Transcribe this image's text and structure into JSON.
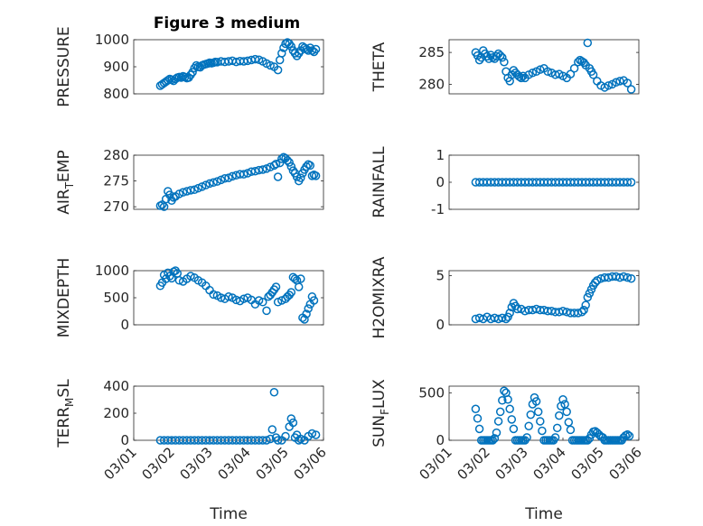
{
  "figure": {
    "title": "Figure 3 medium"
  },
  "colors": {
    "marker": "#0072BD",
    "axis": "#262626"
  },
  "chart_data": [
    {
      "type": "scatter",
      "ylabel_main": "PRESSURE",
      "ylabel_sub": "",
      "ylabel_tail": "",
      "xlabel": "",
      "xlim": [
        0,
        5
      ],
      "ylim": [
        800,
        1000
      ],
      "yticks": [
        800,
        900,
        1000
      ],
      "ytick_labels": [
        "800",
        "900",
        "1000"
      ],
      "xticks": [],
      "xtick_labels": [],
      "x": [
        0.7,
        0.75,
        0.8,
        0.85,
        0.9,
        0.95,
        1.0,
        1.05,
        1.1,
        1.15,
        1.2,
        1.25,
        1.3,
        1.35,
        1.4,
        1.45,
        1.5,
        1.55,
        1.6,
        1.65,
        1.7,
        1.75,
        1.8,
        1.85,
        1.9,
        1.95,
        2.0,
        2.05,
        2.1,
        2.15,
        2.2,
        2.3,
        2.4,
        2.5,
        2.6,
        2.7,
        2.8,
        2.9,
        3.0,
        3.1,
        3.2,
        3.3,
        3.4,
        3.5,
        3.6,
        3.7,
        3.8,
        3.85,
        3.9,
        3.95,
        4.0,
        4.05,
        4.1,
        4.15,
        4.2,
        4.25,
        4.3,
        4.35,
        4.4,
        4.45,
        4.5,
        4.55,
        4.6,
        4.65,
        4.7,
        4.75,
        4.8
      ],
      "y": [
        830,
        835,
        840,
        845,
        850,
        855,
        852,
        848,
        855,
        860,
        862,
        860,
        865,
        862,
        858,
        860,
        870,
        880,
        895,
        905,
        900,
        898,
        905,
        908,
        910,
        912,
        915,
        913,
        915,
        918,
        917,
        920,
        918,
        920,
        922,
        918,
        921,
        920,
        922,
        925,
        928,
        926,
        920,
        912,
        905,
        900,
        888,
        925,
        950,
        970,
        985,
        990,
        985,
        975,
        960,
        950,
        940,
        950,
        960,
        975,
        970,
        965,
        960,
        970,
        960,
        955,
        965
      ]
    },
    {
      "type": "scatter",
      "ylabel_main": "THETA",
      "ylabel_sub": "",
      "ylabel_tail": "",
      "xlabel": "",
      "xlim": [
        0,
        5
      ],
      "ylim": [
        278.5,
        287
      ],
      "yticks": [
        280,
        285
      ],
      "ytick_labels": [
        "280",
        "285"
      ],
      "xticks": [],
      "xtick_labels": [],
      "x": [
        0.7,
        0.75,
        0.8,
        0.85,
        0.9,
        0.95,
        1.0,
        1.05,
        1.1,
        1.15,
        1.2,
        1.25,
        1.3,
        1.35,
        1.4,
        1.45,
        1.5,
        1.55,
        1.6,
        1.65,
        1.7,
        1.75,
        1.8,
        1.85,
        1.9,
        1.95,
        2.0,
        2.1,
        2.2,
        2.3,
        2.4,
        2.5,
        2.6,
        2.7,
        2.8,
        2.9,
        3.0,
        3.1,
        3.2,
        3.3,
        3.4,
        3.45,
        3.5,
        3.55,
        3.6,
        3.65,
        3.7,
        3.75,
        3.8,
        3.9,
        4.0,
        4.1,
        4.2,
        4.3,
        4.4,
        4.5,
        4.6,
        4.7,
        4.8
      ],
      "y": [
        285.0,
        284.5,
        283.8,
        284.2,
        285.3,
        284.8,
        284.4,
        284.0,
        284.6,
        284.2,
        284.0,
        284.4,
        284.8,
        284.5,
        284.2,
        283.5,
        282.0,
        281.0,
        280.5,
        281.5,
        282.2,
        281.8,
        281.5,
        281.2,
        281.0,
        281.3,
        281.0,
        281.5,
        281.8,
        282.0,
        282.3,
        282.5,
        282.0,
        281.8,
        281.5,
        281.6,
        281.3,
        281.0,
        281.6,
        282.5,
        283.5,
        283.8,
        283.6,
        283.4,
        283.0,
        286.5,
        282.5,
        282.0,
        281.5,
        280.5,
        279.8,
        279.5,
        279.8,
        280.0,
        280.3,
        280.5,
        280.6,
        280.2,
        279.2
      ]
    },
    {
      "type": "scatter",
      "ylabel_main": "AIR",
      "ylabel_sub": "T",
      "ylabel_tail": "EMP",
      "xlabel": "",
      "xlim": [
        0,
        5
      ],
      "ylim": [
        269.5,
        280
      ],
      "yticks": [
        270,
        275,
        280
      ],
      "ytick_labels": [
        "270",
        "275",
        "280"
      ],
      "xticks": [],
      "xtick_labels": [],
      "x": [
        0.7,
        0.75,
        0.8,
        0.85,
        0.9,
        0.95,
        1.0,
        1.05,
        1.1,
        1.2,
        1.3,
        1.4,
        1.5,
        1.6,
        1.7,
        1.8,
        1.9,
        2.0,
        2.1,
        2.2,
        2.3,
        2.4,
        2.5,
        2.6,
        2.7,
        2.8,
        2.9,
        3.0,
        3.1,
        3.2,
        3.3,
        3.4,
        3.5,
        3.6,
        3.7,
        3.75,
        3.8,
        3.85,
        3.9,
        3.95,
        4.0,
        4.05,
        4.1,
        4.15,
        4.2,
        4.25,
        4.3,
        4.35,
        4.4,
        4.45,
        4.5,
        4.55,
        4.6,
        4.65,
        4.7,
        4.75,
        4.8
      ],
      "y": [
        270.2,
        270.4,
        270.0,
        271.5,
        273.0,
        272.3,
        271.2,
        271.8,
        272.0,
        272.5,
        272.8,
        273.0,
        273.2,
        273.3,
        273.6,
        273.9,
        274.2,
        274.5,
        274.7,
        274.9,
        275.2,
        275.5,
        275.6,
        275.9,
        276.1,
        276.3,
        276.3,
        276.5,
        276.8,
        276.9,
        277.1,
        277.2,
        277.4,
        277.7,
        278.0,
        278.3,
        275.8,
        278.5,
        279.3,
        279.6,
        279.4,
        279.0,
        278.6,
        277.8,
        277.0,
        276.5,
        275.8,
        275.0,
        275.6,
        276.5,
        277.2,
        277.8,
        278.2,
        278.0,
        276.0,
        276.2,
        276.0
      ]
    },
    {
      "type": "scatter",
      "ylabel_main": "RAINFALL",
      "ylabel_sub": "",
      "ylabel_tail": "",
      "xlabel": "",
      "xlim": [
        0,
        5
      ],
      "ylim": [
        -1,
        1
      ],
      "yticks": [
        -1,
        0,
        1
      ],
      "ytick_labels": [
        "-1",
        "0",
        "1"
      ],
      "xticks": [],
      "xtick_labels": [],
      "x": [
        0.7,
        0.8,
        0.9,
        1.0,
        1.1,
        1.2,
        1.3,
        1.4,
        1.5,
        1.6,
        1.7,
        1.8,
        1.9,
        2.0,
        2.1,
        2.2,
        2.3,
        2.4,
        2.5,
        2.6,
        2.7,
        2.8,
        2.9,
        3.0,
        3.1,
        3.2,
        3.3,
        3.4,
        3.5,
        3.6,
        3.7,
        3.8,
        3.9,
        4.0,
        4.1,
        4.2,
        4.3,
        4.4,
        4.5,
        4.6,
        4.7,
        4.8
      ],
      "y": [
        0,
        0,
        0,
        0,
        0,
        0,
        0,
        0,
        0,
        0,
        0,
        0,
        0,
        0,
        0,
        0,
        0,
        0,
        0,
        0,
        0,
        0,
        0,
        0,
        0,
        0,
        0,
        0,
        0,
        0,
        0,
        0,
        0,
        0,
        0,
        0,
        0,
        0,
        0,
        0,
        0,
        0
      ]
    },
    {
      "type": "scatter",
      "ylabel_main": "MIXDEPTH",
      "ylabel_sub": "",
      "ylabel_tail": "",
      "xlabel": "",
      "xlim": [
        0,
        5
      ],
      "ylim": [
        0,
        1000
      ],
      "yticks": [
        0,
        500,
        1000
      ],
      "ytick_labels": [
        "0",
        "500",
        "1000"
      ],
      "xticks": [],
      "xtick_labels": [],
      "x": [
        0.7,
        0.75,
        0.8,
        0.85,
        0.9,
        0.95,
        1.0,
        1.05,
        1.1,
        1.15,
        1.2,
        1.3,
        1.4,
        1.5,
        1.6,
        1.7,
        1.8,
        1.9,
        2.0,
        2.1,
        2.2,
        2.3,
        2.4,
        2.5,
        2.6,
        2.7,
        2.8,
        2.9,
        3.0,
        3.1,
        3.2,
        3.3,
        3.4,
        3.5,
        3.55,
        3.6,
        3.65,
        3.7,
        3.75,
        3.8,
        3.9,
        4.0,
        4.05,
        4.1,
        4.15,
        4.2,
        4.25,
        4.3,
        4.35,
        4.4,
        4.45,
        4.5,
        4.55,
        4.6,
        4.65,
        4.7,
        4.75
      ],
      "y": [
        720,
        780,
        920,
        850,
        960,
        900,
        860,
        980,
        1000,
        950,
        820,
        800,
        850,
        900,
        870,
        820,
        780,
        720,
        640,
        560,
        540,
        500,
        480,
        520,
        500,
        460,
        440,
        480,
        500,
        460,
        380,
        450,
        420,
        260,
        520,
        550,
        600,
        650,
        700,
        420,
        450,
        480,
        520,
        550,
        600,
        880,
        850,
        820,
        700,
        850,
        130,
        100,
        200,
        300,
        380,
        520,
        450
      ]
    },
    {
      "type": "scatter",
      "ylabel_main": "H2OMIXRA",
      "ylabel_sub": "",
      "ylabel_tail": "",
      "xlabel": "",
      "xlim": [
        0,
        5
      ],
      "ylim": [
        0,
        5.5
      ],
      "yticks": [
        0,
        5
      ],
      "ytick_labels": [
        "0",
        "5"
      ],
      "xticks": [],
      "xtick_labels": [],
      "x": [
        0.7,
        0.8,
        0.9,
        1.0,
        1.1,
        1.2,
        1.3,
        1.4,
        1.5,
        1.55,
        1.6,
        1.65,
        1.7,
        1.75,
        1.8,
        1.9,
        2.0,
        2.1,
        2.2,
        2.3,
        2.4,
        2.5,
        2.6,
        2.7,
        2.8,
        2.9,
        3.0,
        3.1,
        3.2,
        3.3,
        3.4,
        3.5,
        3.55,
        3.6,
        3.65,
        3.7,
        3.75,
        3.8,
        3.85,
        3.9,
        4.0,
        4.1,
        4.2,
        4.3,
        4.4,
        4.5,
        4.6,
        4.7,
        4.8
      ],
      "y": [
        0.6,
        0.7,
        0.6,
        0.8,
        0.6,
        0.7,
        0.6,
        0.7,
        0.6,
        0.8,
        1.2,
        1.8,
        2.2,
        1.9,
        1.6,
        1.6,
        1.4,
        1.5,
        1.5,
        1.6,
        1.5,
        1.5,
        1.4,
        1.4,
        1.3,
        1.3,
        1.4,
        1.3,
        1.2,
        1.2,
        1.2,
        1.3,
        1.5,
        2.0,
        2.8,
        3.2,
        3.6,
        4.0,
        4.3,
        4.5,
        4.7,
        4.8,
        4.8,
        4.9,
        4.9,
        4.8,
        4.9,
        4.8,
        4.7
      ]
    },
    {
      "type": "scatter",
      "ylabel_main": "TERR",
      "ylabel_sub": "M",
      "ylabel_tail": "SL",
      "xlabel": "Time",
      "xlim": [
        0,
        5
      ],
      "ylim": [
        0,
        400
      ],
      "yticks": [
        0,
        200,
        400
      ],
      "ytick_labels": [
        "0",
        "200",
        "400"
      ],
      "xticks": [
        0,
        1,
        2,
        3,
        4,
        5
      ],
      "xtick_labels": [
        "03/01",
        "03/02",
        "03/03",
        "03/04",
        "03/05",
        "03/06"
      ],
      "x": [
        0.7,
        0.8,
        0.9,
        1.0,
        1.1,
        1.2,
        1.3,
        1.4,
        1.5,
        1.6,
        1.7,
        1.8,
        1.9,
        2.0,
        2.1,
        2.2,
        2.3,
        2.4,
        2.5,
        2.6,
        2.7,
        2.8,
        2.9,
        3.0,
        3.1,
        3.2,
        3.3,
        3.4,
        3.5,
        3.6,
        3.65,
        3.7,
        3.75,
        3.8,
        3.9,
        4.0,
        4.1,
        4.15,
        4.2,
        4.25,
        4.3,
        4.35,
        4.4,
        4.5,
        4.6,
        4.7,
        4.8
      ],
      "y": [
        0,
        0,
        0,
        0,
        0,
        0,
        0,
        0,
        0,
        0,
        0,
        0,
        0,
        0,
        0,
        0,
        0,
        0,
        0,
        0,
        0,
        0,
        0,
        0,
        0,
        0,
        0,
        0,
        0,
        10,
        80,
        355,
        20,
        0,
        0,
        30,
        100,
        160,
        130,
        20,
        40,
        0,
        10,
        0,
        30,
        50,
        40
      ]
    },
    {
      "type": "scatter",
      "ylabel_main": "SUN",
      "ylabel_sub": "F",
      "ylabel_tail": "LUX",
      "xlabel": "Time",
      "xlim": [
        0,
        5
      ],
      "ylim": [
        0,
        570
      ],
      "yticks": [
        0,
        500
      ],
      "ytick_labels": [
        "0",
        "500"
      ],
      "xticks": [
        0,
        1,
        2,
        3,
        4,
        5
      ],
      "xtick_labels": [
        "03/01",
        "03/02",
        "03/03",
        "03/04",
        "03/05",
        "03/06"
      ],
      "x": [
        0.7,
        0.75,
        0.8,
        0.85,
        0.9,
        0.95,
        1.0,
        1.05,
        1.1,
        1.15,
        1.2,
        1.25,
        1.3,
        1.35,
        1.4,
        1.45,
        1.5,
        1.55,
        1.6,
        1.65,
        1.7,
        1.75,
        1.8,
        1.85,
        1.9,
        1.95,
        2.0,
        2.05,
        2.1,
        2.15,
        2.2,
        2.25,
        2.3,
        2.35,
        2.4,
        2.45,
        2.5,
        2.55,
        2.6,
        2.65,
        2.7,
        2.75,
        2.8,
        2.85,
        2.9,
        2.95,
        3.0,
        3.05,
        3.1,
        3.15,
        3.2,
        3.25,
        3.3,
        3.35,
        3.4,
        3.45,
        3.5,
        3.55,
        3.6,
        3.65,
        3.7,
        3.75,
        3.8,
        3.85,
        3.9,
        3.95,
        4.0,
        4.05,
        4.1,
        4.15,
        4.2,
        4.25,
        4.3,
        4.35,
        4.4,
        4.45,
        4.5,
        4.55,
        4.6,
        4.65,
        4.7,
        4.75
      ],
      "y": [
        330,
        230,
        120,
        0,
        0,
        0,
        0,
        0,
        0,
        0,
        20,
        80,
        200,
        300,
        420,
        520,
        500,
        430,
        330,
        220,
        120,
        0,
        0,
        0,
        0,
        0,
        0,
        30,
        150,
        270,
        380,
        450,
        410,
        300,
        200,
        100,
        0,
        0,
        0,
        0,
        0,
        0,
        30,
        130,
        260,
        360,
        430,
        380,
        300,
        190,
        110,
        0,
        0,
        0,
        0,
        0,
        0,
        0,
        0,
        0,
        20,
        60,
        90,
        95,
        80,
        60,
        40,
        30,
        0,
        0,
        0,
        0,
        0,
        0,
        0,
        0,
        0,
        0,
        30,
        50,
        60,
        45
      ]
    }
  ]
}
